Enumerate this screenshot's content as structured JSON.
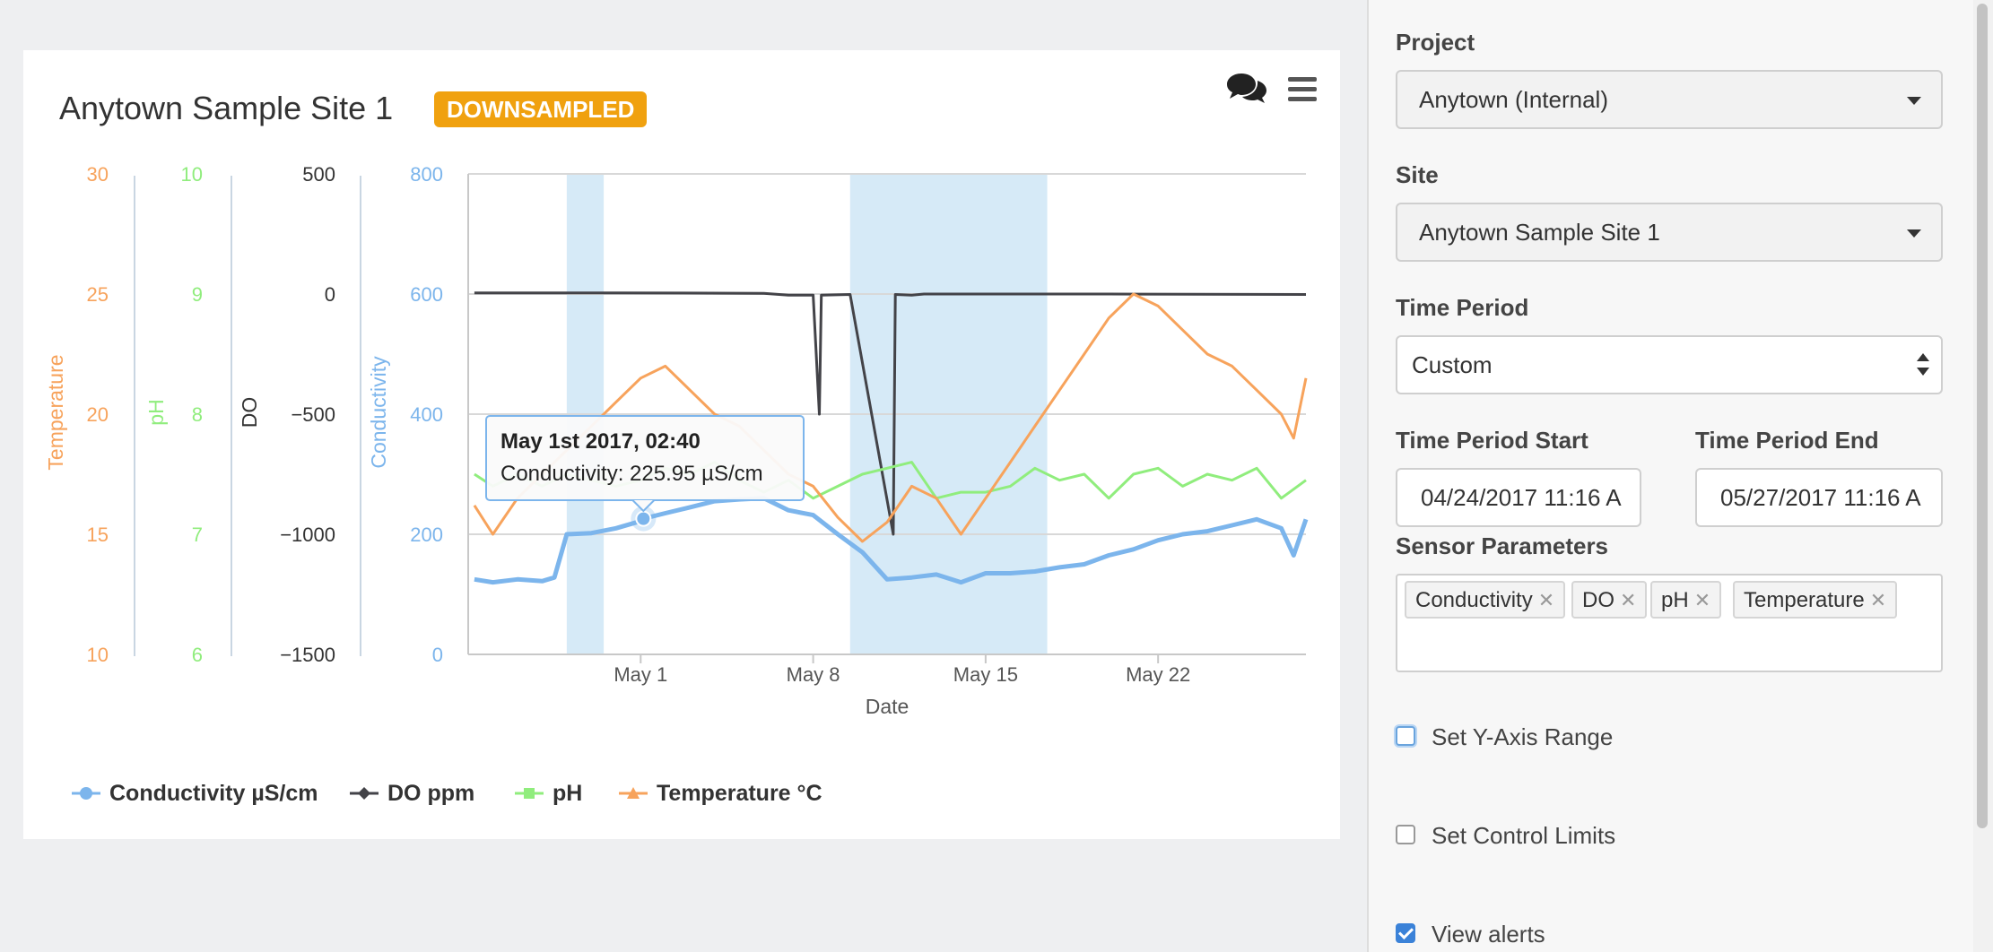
{
  "chart_card": {
    "title": "Anytown Sample Site 1",
    "badge": "DOWNSAMPLED",
    "comments_icon": "comments-icon",
    "menu_icon": "hamburger-menu-icon"
  },
  "chart_data": {
    "type": "line",
    "xlabel": "Date",
    "x_ticks": [
      "May 1",
      "May 8",
      "May 15",
      "May 22"
    ],
    "x_range": [
      "2017-04-24",
      "2017-05-28"
    ],
    "colors": {
      "Conductivity": "#7cb5ec",
      "DO": "#434348",
      "pH": "#90ed7d",
      "Temperature": "#f7a35c",
      "band": "#d6eaf7"
    },
    "axes": [
      {
        "name": "Temperature",
        "label": "Temperature",
        "range": [
          10,
          30
        ],
        "ticks": [
          "30",
          "25",
          "20",
          "15",
          "10"
        ],
        "color": "#f7a35c"
      },
      {
        "name": "pH",
        "label": "pH",
        "range": [
          6,
          10
        ],
        "ticks": [
          "10",
          "9",
          "8",
          "7",
          "6"
        ],
        "color": "#90ed7d"
      },
      {
        "name": "DO",
        "label": "DO",
        "range": [
          -1500,
          500
        ],
        "ticks": [
          "500",
          "0",
          "−500",
          "−1000",
          "−1500"
        ],
        "color": "#333333"
      },
      {
        "name": "Conductivity",
        "label": "Conductivity",
        "range": [
          0,
          800
        ],
        "ticks": [
          "800",
          "600",
          "400",
          "200",
          "0"
        ],
        "color": "#7cb5ec"
      }
    ],
    "bands": [
      [
        "2017-04-28T00:00",
        "2017-04-29T12:00"
      ],
      [
        "2017-05-09T12:00",
        "2017-05-17T12:00"
      ]
    ],
    "series": [
      {
        "name": "Conductivity µS/cm",
        "axis": "Conductivity",
        "color": "#7cb5ec",
        "marker": "circle",
        "points": [
          [
            "2017-04-24T06:00",
            125
          ],
          [
            "2017-04-25T00:00",
            120
          ],
          [
            "2017-04-26T00:00",
            125
          ],
          [
            "2017-04-27T00:00",
            122
          ],
          [
            "2017-04-27T12:00",
            128
          ],
          [
            "2017-04-28T00:00",
            200
          ],
          [
            "2017-04-29T00:00",
            202
          ],
          [
            "2017-04-30T00:00",
            210
          ],
          [
            "2017-05-01T00:00",
            222
          ],
          [
            "2017-05-01T02:40",
            225.95
          ],
          [
            "2017-05-02T00:00",
            235
          ],
          [
            "2017-05-03T00:00",
            245
          ],
          [
            "2017-05-04T00:00",
            255
          ],
          [
            "2017-05-05T00:00",
            258
          ],
          [
            "2017-05-06T00:00",
            260
          ],
          [
            "2017-05-07T00:00",
            240
          ],
          [
            "2017-05-08T00:00",
            232
          ],
          [
            "2017-05-09T00:00",
            200
          ],
          [
            "2017-05-10T00:00",
            170
          ],
          [
            "2017-05-11T00:00",
            125
          ],
          [
            "2017-05-12T00:00",
            128
          ],
          [
            "2017-05-13T00:00",
            133
          ],
          [
            "2017-05-14T00:00",
            120
          ],
          [
            "2017-05-15T00:00",
            135
          ],
          [
            "2017-05-16T00:00",
            135
          ],
          [
            "2017-05-17T00:00",
            138
          ],
          [
            "2017-05-18T00:00",
            145
          ],
          [
            "2017-05-19T00:00",
            150
          ],
          [
            "2017-05-20T00:00",
            165
          ],
          [
            "2017-05-21T00:00",
            175
          ],
          [
            "2017-05-22T00:00",
            190
          ],
          [
            "2017-05-23T00:00",
            200
          ],
          [
            "2017-05-24T00:00",
            205
          ],
          [
            "2017-05-25T00:00",
            215
          ],
          [
            "2017-05-26T00:00",
            225
          ],
          [
            "2017-05-27T00:00",
            210
          ],
          [
            "2017-05-27T12:00",
            165
          ],
          [
            "2017-05-28T00:00",
            225
          ]
        ]
      },
      {
        "name": "DO ppm",
        "axis": "DO",
        "color": "#434348",
        "marker": "diamond",
        "points": [
          [
            "2017-04-24T06:00",
            5
          ],
          [
            "2017-04-30T00:00",
            5
          ],
          [
            "2017-05-06T00:00",
            3
          ],
          [
            "2017-05-07T00:00",
            -5
          ],
          [
            "2017-05-08T00:00",
            -5
          ],
          [
            "2017-05-08T06:00",
            -500
          ],
          [
            "2017-05-08T08:00",
            -5
          ],
          [
            "2017-05-09T12:00",
            -2
          ],
          [
            "2017-05-11T06:00",
            -1000
          ],
          [
            "2017-05-11T08:00",
            -2
          ],
          [
            "2017-05-12T00:00",
            -5
          ],
          [
            "2017-05-12T12:00",
            0
          ],
          [
            "2017-05-20T00:00",
            0
          ],
          [
            "2017-05-28T00:00",
            -2
          ]
        ]
      },
      {
        "name": "pH",
        "axis": "pH",
        "color": "#90ed7d",
        "marker": "square",
        "points": [
          [
            "2017-04-24T06:00",
            7.5
          ],
          [
            "2017-04-25T00:00",
            7.4
          ],
          [
            "2017-04-26T00:00",
            7.5
          ],
          [
            "2017-04-27T00:00",
            7.4
          ],
          [
            "2017-04-28T00:00",
            7.5
          ],
          [
            "2017-04-29T00:00",
            7.45
          ],
          [
            "2017-04-30T00:00",
            7.4
          ],
          [
            "2017-05-01T00:00",
            7.45
          ],
          [
            "2017-05-02T00:00",
            7.55
          ],
          [
            "2017-05-03T00:00",
            7.5
          ],
          [
            "2017-05-04T00:00",
            7.6
          ],
          [
            "2017-05-05T00:00",
            7.45
          ],
          [
            "2017-05-06T00:00",
            7.35
          ],
          [
            "2017-05-07T00:00",
            7.45
          ],
          [
            "2017-05-08T00:00",
            7.3
          ],
          [
            "2017-05-09T00:00",
            7.4
          ],
          [
            "2017-05-10T00:00",
            7.5
          ],
          [
            "2017-05-11T00:00",
            7.55
          ],
          [
            "2017-05-12T00:00",
            7.6
          ],
          [
            "2017-05-13T00:00",
            7.3
          ],
          [
            "2017-05-14T00:00",
            7.35
          ],
          [
            "2017-05-15T00:00",
            7.35
          ],
          [
            "2017-05-16T00:00",
            7.4
          ],
          [
            "2017-05-17T00:00",
            7.55
          ],
          [
            "2017-05-18T00:00",
            7.45
          ],
          [
            "2017-05-19T00:00",
            7.5
          ],
          [
            "2017-05-20T00:00",
            7.3
          ],
          [
            "2017-05-21T00:00",
            7.5
          ],
          [
            "2017-05-22T00:00",
            7.55
          ],
          [
            "2017-05-23T00:00",
            7.4
          ],
          [
            "2017-05-24T00:00",
            7.5
          ],
          [
            "2017-05-25T00:00",
            7.45
          ],
          [
            "2017-05-26T00:00",
            7.55
          ],
          [
            "2017-05-27T00:00",
            7.3
          ],
          [
            "2017-05-28T00:00",
            7.45
          ]
        ]
      },
      {
        "name": "Temperature °C",
        "axis": "Temperature",
        "color": "#f7a35c",
        "marker": "triangle",
        "points": [
          [
            "2017-04-24T06:00",
            16.2
          ],
          [
            "2017-04-25T00:00",
            15
          ],
          [
            "2017-04-26T00:00",
            16.5
          ],
          [
            "2017-04-27T00:00",
            17.5
          ],
          [
            "2017-04-28T00:00",
            18.5
          ],
          [
            "2017-04-29T00:00",
            19.5
          ],
          [
            "2017-04-30T00:00",
            20.5
          ],
          [
            "2017-05-01T00:00",
            21.5
          ],
          [
            "2017-05-02T00:00",
            22
          ],
          [
            "2017-05-03T00:00",
            21
          ],
          [
            "2017-05-04T00:00",
            20
          ],
          [
            "2017-05-05T00:00",
            19.5
          ],
          [
            "2017-05-06T00:00",
            18.5
          ],
          [
            "2017-05-07T00:00",
            17.5
          ],
          [
            "2017-05-08T00:00",
            17
          ],
          [
            "2017-05-09T00:00",
            15.7
          ],
          [
            "2017-05-10T00:00",
            14.7
          ],
          [
            "2017-05-11T00:00",
            15.5
          ],
          [
            "2017-05-12T00:00",
            17
          ],
          [
            "2017-05-13T00:00",
            16.5
          ],
          [
            "2017-05-14T00:00",
            15
          ],
          [
            "2017-05-15T00:00",
            16.5
          ],
          [
            "2017-05-16T00:00",
            18
          ],
          [
            "2017-05-17T00:00",
            19.5
          ],
          [
            "2017-05-18T00:00",
            21
          ],
          [
            "2017-05-19T00:00",
            22.5
          ],
          [
            "2017-05-20T00:00",
            24
          ],
          [
            "2017-05-21T00:00",
            25
          ],
          [
            "2017-05-22T00:00",
            24.5
          ],
          [
            "2017-05-23T00:00",
            23.5
          ],
          [
            "2017-05-24T00:00",
            22.5
          ],
          [
            "2017-05-25T00:00",
            22
          ],
          [
            "2017-05-26T00:00",
            21
          ],
          [
            "2017-05-27T00:00",
            20
          ],
          [
            "2017-05-27T12:00",
            19
          ],
          [
            "2017-05-28T00:00",
            21.5
          ]
        ]
      }
    ],
    "tooltip": {
      "title": "May 1st 2017, 02:40",
      "text": "Conductivity: 225.95 µS/cm",
      "point": [
        "2017-05-01T02:40",
        225.95
      ],
      "series": "Conductivity µS/cm"
    },
    "legend": [
      "Conductivity µS/cm",
      "DO ppm",
      "pH",
      "Temperature °C"
    ]
  },
  "side_panel": {
    "project": {
      "label": "Project",
      "value": "Anytown (Internal)"
    },
    "site": {
      "label": "Site",
      "value": "Anytown Sample Site 1"
    },
    "time_period": {
      "label": "Time Period",
      "value": "Custom"
    },
    "time_start": {
      "label": "Time Period Start",
      "value": "04/24/2017 11:16 A"
    },
    "time_end": {
      "label": "Time Period End",
      "value": "05/27/2017 11:16 A"
    },
    "sensor_parameters": {
      "label": "Sensor Parameters",
      "tags": [
        "Conductivity",
        "DO",
        "pH",
        "Temperature"
      ],
      "remove_glyph": "✕"
    },
    "set_y_axis_range": {
      "label": "Set Y-Axis Range",
      "checked": false
    },
    "set_control_limits": {
      "label": "Set Control Limits",
      "checked": false
    },
    "view_alerts": {
      "label": "View alerts",
      "checked": true
    }
  }
}
